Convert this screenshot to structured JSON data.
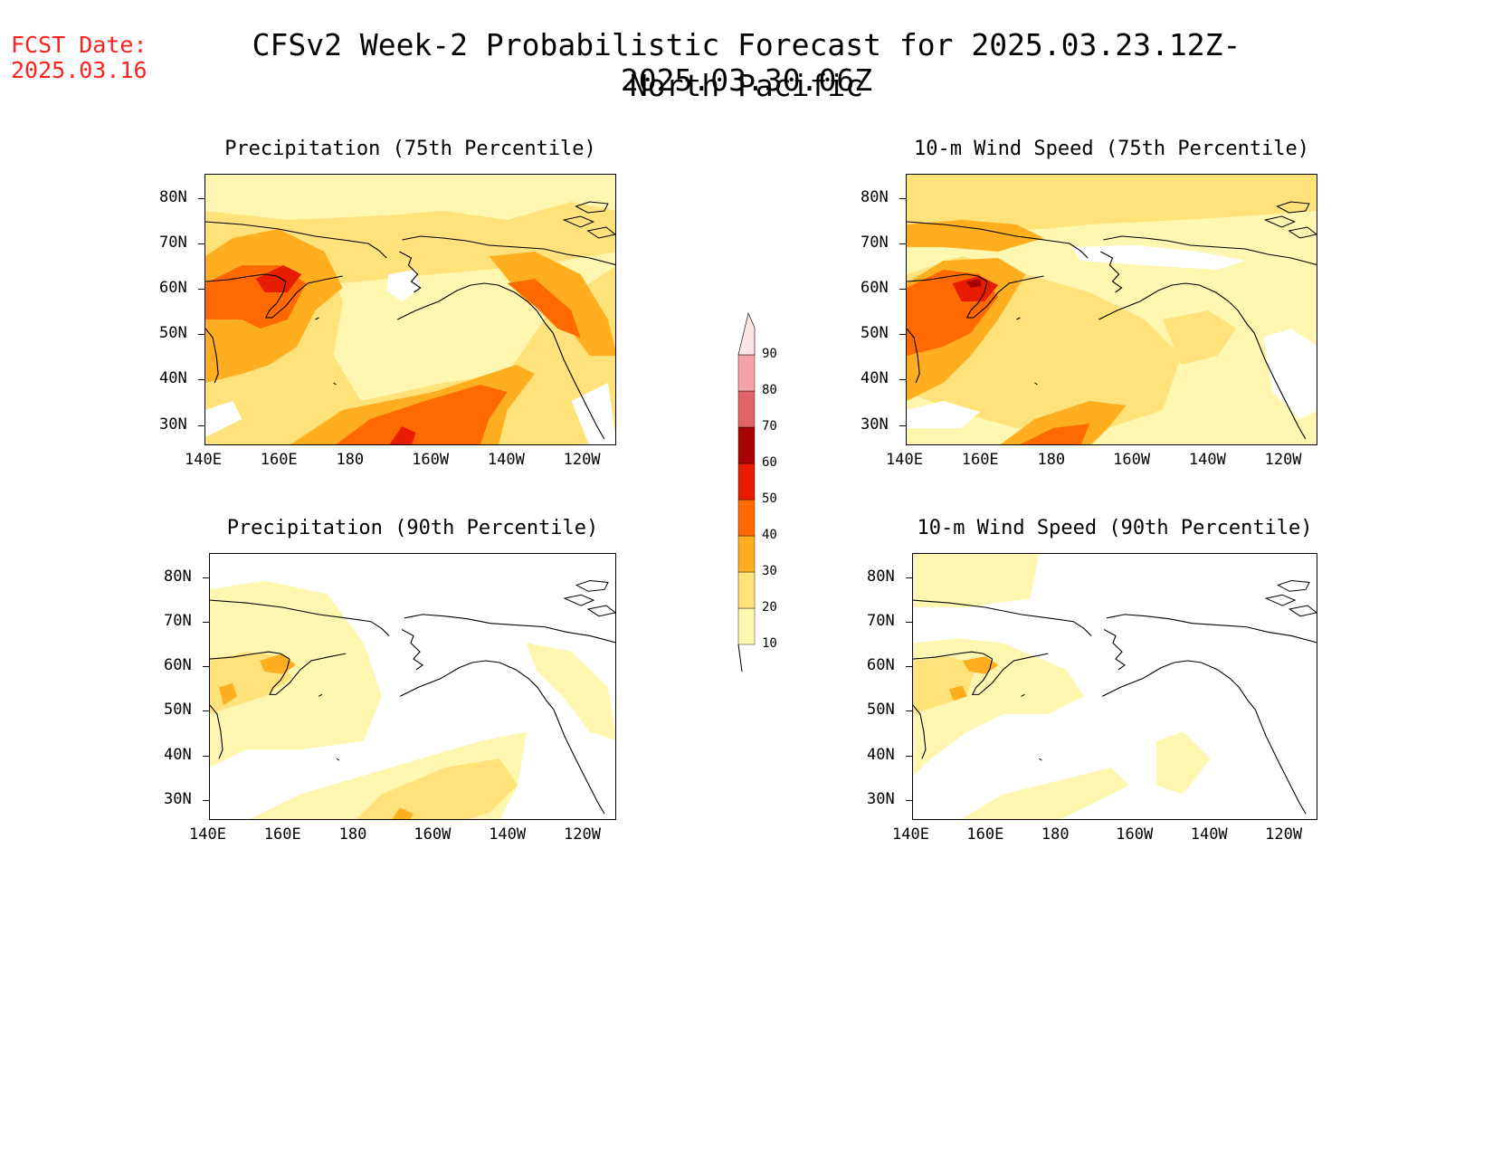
{
  "forecast_date": {
    "label": "FCST Date:",
    "value": "2025.03.16"
  },
  "title": "CFSv2 Week-2 Probabilistic Forecast for 2025.03.23.12Z-2025.03.30.06Z",
  "subtitle": "North Pacific",
  "lat_labels": [
    "80N",
    "70N",
    "60N",
    "50N",
    "40N",
    "30N"
  ],
  "lon_labels": [
    "140E",
    "160E",
    "180",
    "160W",
    "140W",
    "120W"
  ],
  "panels": [
    {
      "title": "Precipitation (75th Percentile)"
    },
    {
      "title": "10-m Wind Speed (75th Percentile)"
    },
    {
      "title": "Precipitation (90th Percentile)"
    },
    {
      "title": "10-m Wind Speed (90th Percentile)"
    }
  ],
  "colorbar": {
    "levels": [
      "10",
      "20",
      "30",
      "40",
      "50",
      "60",
      "70",
      "80",
      "90"
    ],
    "colors": [
      "#fff6b0",
      "#ffe27a",
      "#ffae20",
      "#ff6a00",
      "#e81c00",
      "#a50400",
      "#de6466",
      "#f4a4a6",
      "#fde4e4"
    ]
  },
  "colors": {
    "forecast_date": "#ff2020"
  }
}
